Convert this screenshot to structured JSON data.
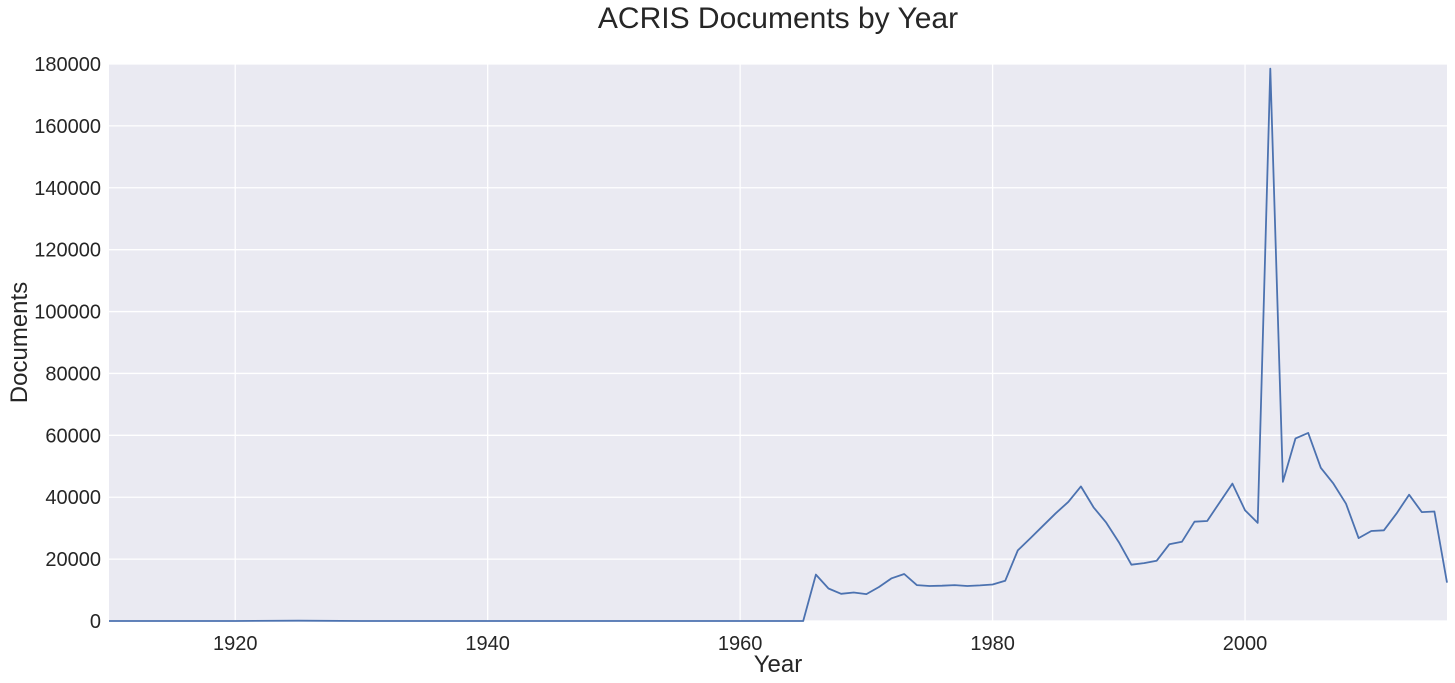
{
  "chart_data": {
    "type": "line",
    "title": "ACRIS Documents by Year",
    "xlabel": "Year",
    "ylabel": "Documents",
    "xlim": [
      1910,
      2016
    ],
    "ylim": [
      0,
      180000
    ],
    "x_ticks": [
      1920,
      1940,
      1960,
      1980,
      2000
    ],
    "y_ticks": [
      0,
      20000,
      40000,
      60000,
      80000,
      100000,
      120000,
      140000,
      160000,
      180000
    ],
    "grid": true,
    "background": "#eaeaf2",
    "grid_color": "#ffffff",
    "series": [
      {
        "color": "#4c72b0",
        "x": [
          1910,
          1920,
          1925,
          1930,
          1940,
          1950,
          1960,
          1965,
          1966,
          1967,
          1968,
          1969,
          1970,
          1971,
          1972,
          1973,
          1974,
          1975,
          1976,
          1977,
          1978,
          1979,
          1980,
          1981,
          1982,
          1983,
          1984,
          1985,
          1986,
          1987,
          1988,
          1989,
          1990,
          1991,
          1992,
          1993,
          1994,
          1995,
          1996,
          1997,
          1998,
          1999,
          2000,
          2001,
          2002,
          2003,
          2004,
          2005,
          2006,
          2007,
          2008,
          2009,
          2010,
          2011,
          2012,
          2013,
          2014,
          2015,
          2016
        ],
        "y": [
          0,
          0,
          100,
          0,
          0,
          0,
          0,
          0,
          15000,
          10500,
          8800,
          9200,
          8700,
          11000,
          13800,
          15200,
          11600,
          11300,
          11400,
          11600,
          11300,
          11500,
          11800,
          13000,
          22800,
          26800,
          30800,
          34800,
          38500,
          43500,
          36700,
          31800,
          25500,
          18200,
          18700,
          19500,
          24800,
          25600,
          32100,
          32300,
          38400,
          44400,
          35800,
          31700,
          178500,
          45000,
          59000,
          60800,
          49500,
          44400,
          37900,
          26800,
          29100,
          29300,
          34700,
          40800,
          35200,
          35400,
          12400
        ]
      }
    ]
  }
}
